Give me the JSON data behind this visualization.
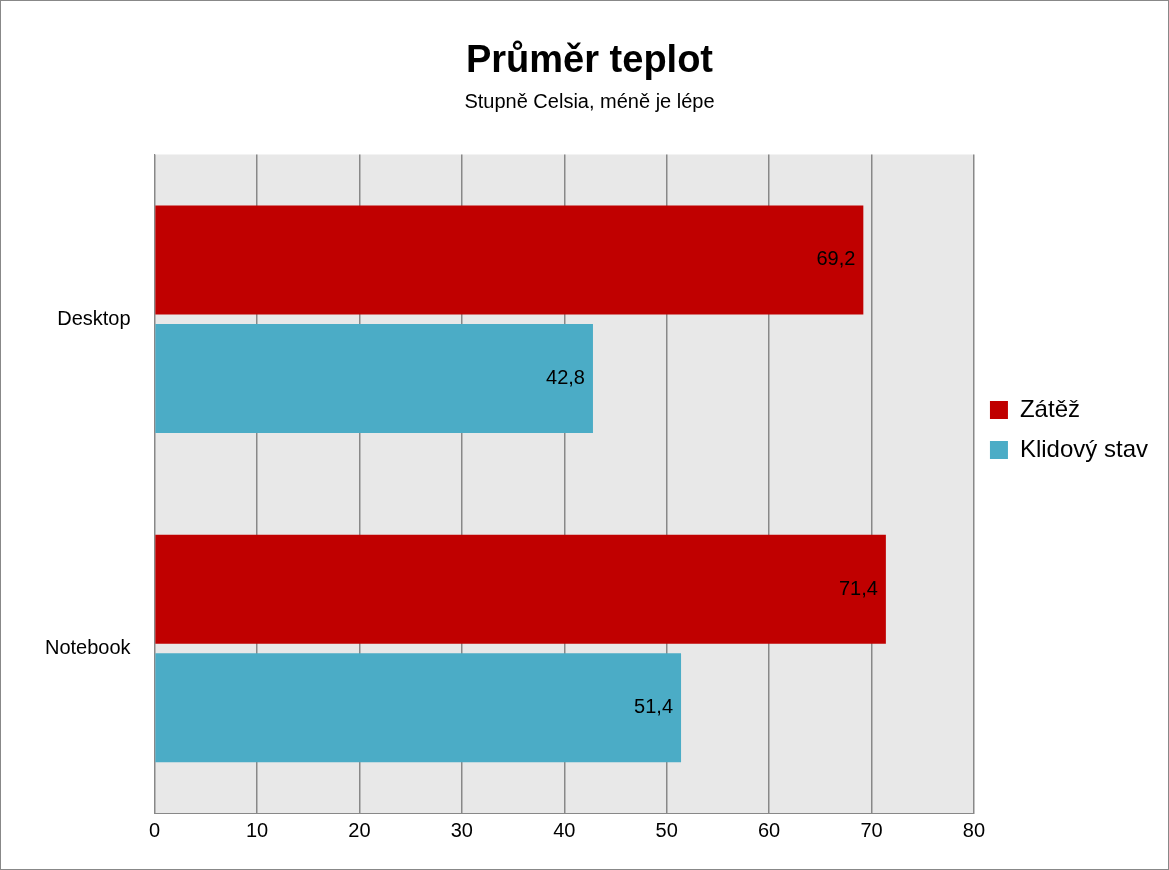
{
  "chart_data": {
    "type": "bar",
    "orientation": "horizontal",
    "title": "Průměr teplot",
    "subtitle": "Stupně Celsia, méně je lépe",
    "categories": [
      "Desktop",
      "Notebook"
    ],
    "series": [
      {
        "name": "Zátěž",
        "color": "#c00000",
        "values": [
          69.2,
          71.4
        ],
        "value_labels": [
          "69,2",
          "71,4"
        ]
      },
      {
        "name": "Klidový stav",
        "color": "#4bacc6",
        "values": [
          42.8,
          51.4
        ],
        "value_labels": [
          "42,8",
          "51,4"
        ]
      }
    ],
    "xlim": [
      0,
      80
    ],
    "xticks": [
      0,
      10,
      20,
      30,
      40,
      50,
      60,
      70,
      80
    ],
    "grid": "x",
    "legend": "right"
  }
}
